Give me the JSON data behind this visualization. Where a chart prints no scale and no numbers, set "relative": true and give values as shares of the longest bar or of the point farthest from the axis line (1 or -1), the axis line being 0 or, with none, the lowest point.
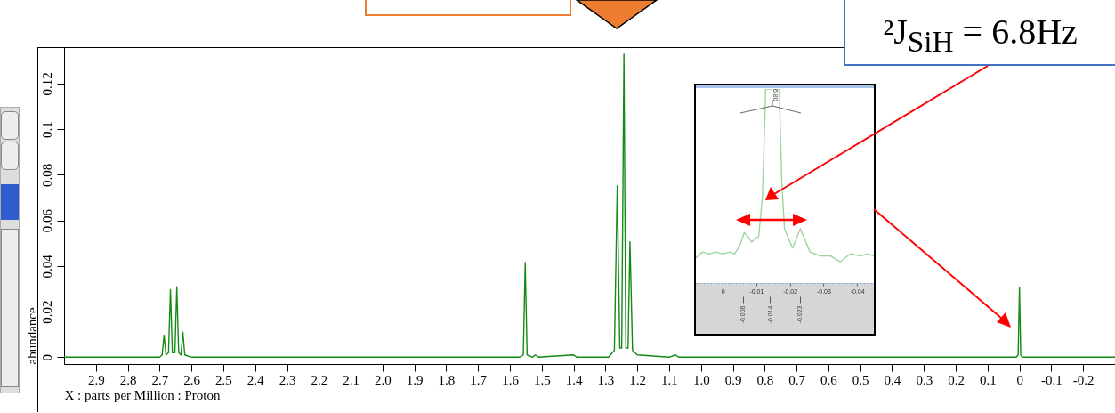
{
  "chart_data": [
    {
      "type": "line",
      "xlabel": "X : parts per Million : Proton",
      "ylabel": "abundance",
      "xlim": [
        3.0,
        -0.3
      ],
      "ylim": [
        -0.003,
        0.136
      ],
      "xticks": [
        2.9,
        2.8,
        2.7,
        2.6,
        2.5,
        2.4,
        2.3,
        2.2,
        2.1,
        {
          "value": 2,
          "label": "2.0"
        },
        1.9,
        1.8,
        1.7,
        1.6,
        1.5,
        1.4,
        1.3,
        1.2,
        1.1,
        {
          "value": 1,
          "label": "1.0"
        },
        0.9,
        0.8,
        0.7,
        0.6,
        0.5,
        0.4,
        0.3,
        0.2,
        0.1,
        0,
        -0.1,
        -0.2
      ],
      "yticks": [
        0,
        0.02,
        0.04,
        0.06,
        0.08,
        0.1,
        0.12
      ],
      "annotations": [
        "²J$_{SiH}$ = 6.8Hz"
      ],
      "series": [
        {
          "color": "#138a13",
          "x": [
            3.0,
            2.7,
            2.692,
            2.686,
            2.68,
            2.672,
            2.666,
            2.66,
            2.652,
            2.646,
            2.64,
            2.633,
            2.627,
            2.621,
            2.6,
            2.2,
            1.8,
            1.57,
            1.558,
            1.552,
            1.546,
            1.53,
            1.52,
            1.51,
            1.4,
            1.39,
            1.29,
            1.272,
            1.263,
            1.255,
            1.249,
            1.242,
            1.236,
            1.229,
            1.223,
            1.215,
            1.2,
            1.1,
            1.08,
            1.07,
            0.5,
            0.01,
            0.004,
            0,
            -0.004,
            -0.01,
            -0.3
          ],
          "values": [
            0,
            0,
            0.001,
            0.0097,
            0.001,
            0.002,
            0.0296,
            0.002,
            0.002,
            0.0309,
            0.002,
            0.001,
            0.011,
            0.001,
            0,
            0,
            0,
            0,
            0.001,
            0.0415,
            0.001,
            0,
            0.001,
            0,
            0.001,
            0,
            0,
            0.003,
            0.0752,
            0.004,
            0.004,
            0.133,
            0.004,
            0.004,
            0.0506,
            0.003,
            0.001,
            0,
            0.001,
            0,
            0,
            0,
            0.001,
            0.0306,
            0.001,
            0,
            0
          ]
        }
      ]
    },
    {
      "type": "line",
      "relative": true,
      "xlim": [
        0.008,
        -0.045
      ],
      "xticks": [
        0,
        -0.01,
        -0.02,
        -0.03,
        -0.04
      ],
      "x2lim": [
        0.008,
        -0.045
      ],
      "x2ticks": [
        -0.006,
        -0.014,
        -0.023
      ],
      "annotations": [
        "6.80"
      ],
      "series": [
        {
          "color": "#9fd49f",
          "x": [
            0.008,
            0.006,
            0.004,
            0.002,
            0,
            -0.002,
            -0.0035,
            -0.005,
            -0.0064,
            -0.0075,
            -0.0086,
            -0.0098,
            -0.0107,
            -0.0118,
            -0.0128,
            -0.0168,
            -0.0176,
            -0.0184,
            -0.0208,
            -0.0231,
            -0.026,
            -0.029,
            -0.032,
            -0.035,
            -0.038,
            -0.041,
            -0.043,
            -0.045
          ],
          "values": [
            0.13,
            0.16,
            0.15,
            0.16,
            0.15,
            0.16,
            0.15,
            0.19,
            0.26,
            0.24,
            0.21,
            0.23,
            0.24,
            0.44,
            1,
            1,
            0.51,
            0.28,
            0.18,
            0.28,
            0.16,
            0.14,
            0.14,
            0.11,
            0.15,
            0.14,
            0.15,
            0.14
          ]
        }
      ]
    }
  ]
}
